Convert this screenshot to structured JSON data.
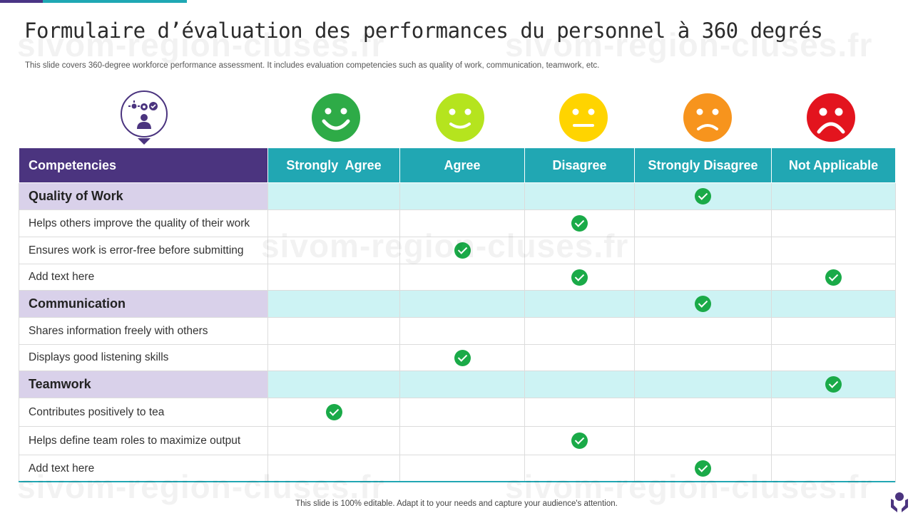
{
  "slide": {
    "title": "Formulaire d’évaluation des performances du personnel à 360 degrés",
    "subtitle": "This slide covers 360-degree workforce performance assessment. It includes evaluation competencies such as quality of work, communication, teamwork, etc.",
    "footer": "This slide is 100% editable. Adapt it to your needs and capture your audience's attention.",
    "watermark": "sivom-region-cluses.fr"
  },
  "colors": {
    "header_purple": "#4b347f",
    "header_teal": "#21a7b3",
    "category_label_bg": "#d9d1ea",
    "category_row_bg": "#cdf3f4",
    "check_green": "#1aaa48"
  },
  "icons": {
    "header": "person-gears-icon",
    "faces": [
      "happy-face-icon",
      "smile-face-icon",
      "neutral-face-icon",
      "sad-face-icon",
      "frown-face-icon"
    ],
    "face_colors": [
      "#2eab47",
      "#b5e41e",
      "#ffd400",
      "#f7941d",
      "#e3141e"
    ],
    "check": "check-icon",
    "corner": "support-hands-icon"
  },
  "table": {
    "columns": [
      "Competencies",
      "Strongly  Agree",
      "Agree",
      "Disagree",
      "Strongly Disagree",
      "Not Applicable"
    ],
    "rows": [
      {
        "label": "Quality of Work",
        "category": true,
        "checks": [
          false,
          false,
          false,
          true,
          false
        ]
      },
      {
        "label": "Helps others improve the quality of their work",
        "category": false,
        "checks": [
          false,
          false,
          true,
          false,
          false
        ]
      },
      {
        "label": "Ensures work is error-free before submitting",
        "category": false,
        "checks": [
          false,
          true,
          false,
          false,
          false
        ]
      },
      {
        "label": "Add text here",
        "category": false,
        "checks": [
          false,
          false,
          true,
          false,
          true
        ]
      },
      {
        "label": "Communication",
        "category": true,
        "checks": [
          false,
          false,
          false,
          true,
          false
        ]
      },
      {
        "label": "Shares information freely with others",
        "category": false,
        "checks": [
          false,
          false,
          false,
          false,
          false
        ]
      },
      {
        "label": "Displays good listening skills",
        "category": false,
        "checks": [
          false,
          true,
          false,
          false,
          false
        ]
      },
      {
        "label": "Teamwork",
        "category": true,
        "checks": [
          false,
          false,
          false,
          false,
          true
        ]
      },
      {
        "label": "Contributes positively to tea",
        "category": false,
        "checks": [
          true,
          false,
          false,
          false,
          false
        ]
      },
      {
        "label": "Helps define team roles to maximize output",
        "category": false,
        "checks": [
          false,
          false,
          true,
          false,
          false
        ]
      },
      {
        "label": "Add text here",
        "category": false,
        "checks": [
          false,
          false,
          false,
          true,
          false
        ]
      }
    ]
  }
}
